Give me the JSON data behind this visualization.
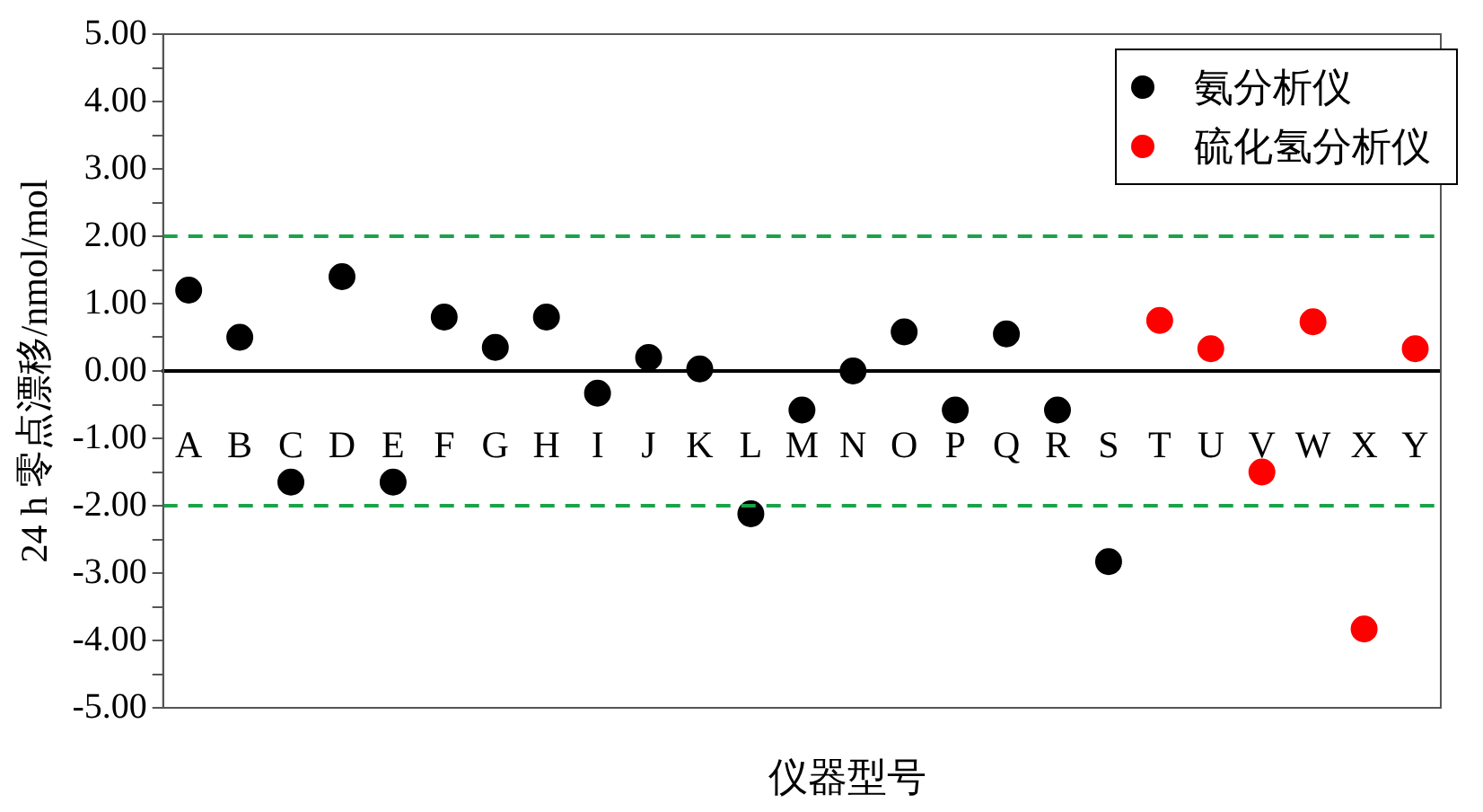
{
  "chart_data": {
    "type": "scatter",
    "xlabel": "仪器型号",
    "ylabel": "24 h 零点漂移/nmol/mol",
    "categories": [
      "A",
      "B",
      "C",
      "D",
      "E",
      "F",
      "G",
      "H",
      "I",
      "J",
      "K",
      "L",
      "M",
      "N",
      "O",
      "P",
      "Q",
      "R",
      "S",
      "T",
      "U",
      "V",
      "W",
      "X",
      "Y"
    ],
    "series": [
      {
        "name": "氨分析仪",
        "color": "#000000",
        "values": [
          1.2,
          0.5,
          -1.65,
          1.4,
          -1.65,
          0.8,
          0.35,
          0.8,
          -0.33,
          0.2,
          0.03,
          -2.12,
          -0.58,
          0.0,
          0.58,
          -0.58,
          0.55,
          -0.58,
          -2.83,
          null,
          null,
          null,
          null,
          null,
          null
        ]
      },
      {
        "name": "硫化氢分析仪",
        "color": "#ff0000",
        "values": [
          null,
          null,
          null,
          null,
          null,
          null,
          null,
          null,
          null,
          null,
          null,
          null,
          null,
          null,
          null,
          null,
          null,
          null,
          null,
          0.75,
          0.33,
          -1.5,
          0.73,
          -3.83,
          0.33
        ]
      }
    ],
    "ylim": [
      -5,
      5
    ],
    "yticks": [
      {
        "value": -5,
        "label": "-5.00"
      },
      {
        "value": -4.5,
        "label": null
      },
      {
        "value": -4,
        "label": "-4.00"
      },
      {
        "value": -3.5,
        "label": null
      },
      {
        "value": -3,
        "label": "-3.00"
      },
      {
        "value": -2.5,
        "label": null
      },
      {
        "value": -2,
        "label": "-2.00"
      },
      {
        "value": -1.5,
        "label": null
      },
      {
        "value": -1,
        "label": "-1.00"
      },
      {
        "value": -0.5,
        "label": null
      },
      {
        "value": 0,
        "label": "0.00"
      },
      {
        "value": 0.5,
        "label": null
      },
      {
        "value": 1,
        "label": "1.00"
      },
      {
        "value": 1.5,
        "label": null
      },
      {
        "value": 2,
        "label": "2.00"
      },
      {
        "value": 2.5,
        "label": null
      },
      {
        "value": 3,
        "label": "3.00"
      },
      {
        "value": 3.5,
        "label": null
      },
      {
        "value": 4,
        "label": "4.00"
      },
      {
        "value": 4.5,
        "label": null
      },
      {
        "value": 5,
        "label": "5.00"
      }
    ],
    "ref_lines": [
      {
        "axis": "y",
        "value": 2,
        "color": "#1aa34a",
        "line_style": "dashed"
      },
      {
        "axis": "y",
        "value": -2,
        "color": "#1aa34a",
        "line_style": "dashed"
      }
    ],
    "legend": "top right",
    "marker": "circle",
    "grid": false
  }
}
